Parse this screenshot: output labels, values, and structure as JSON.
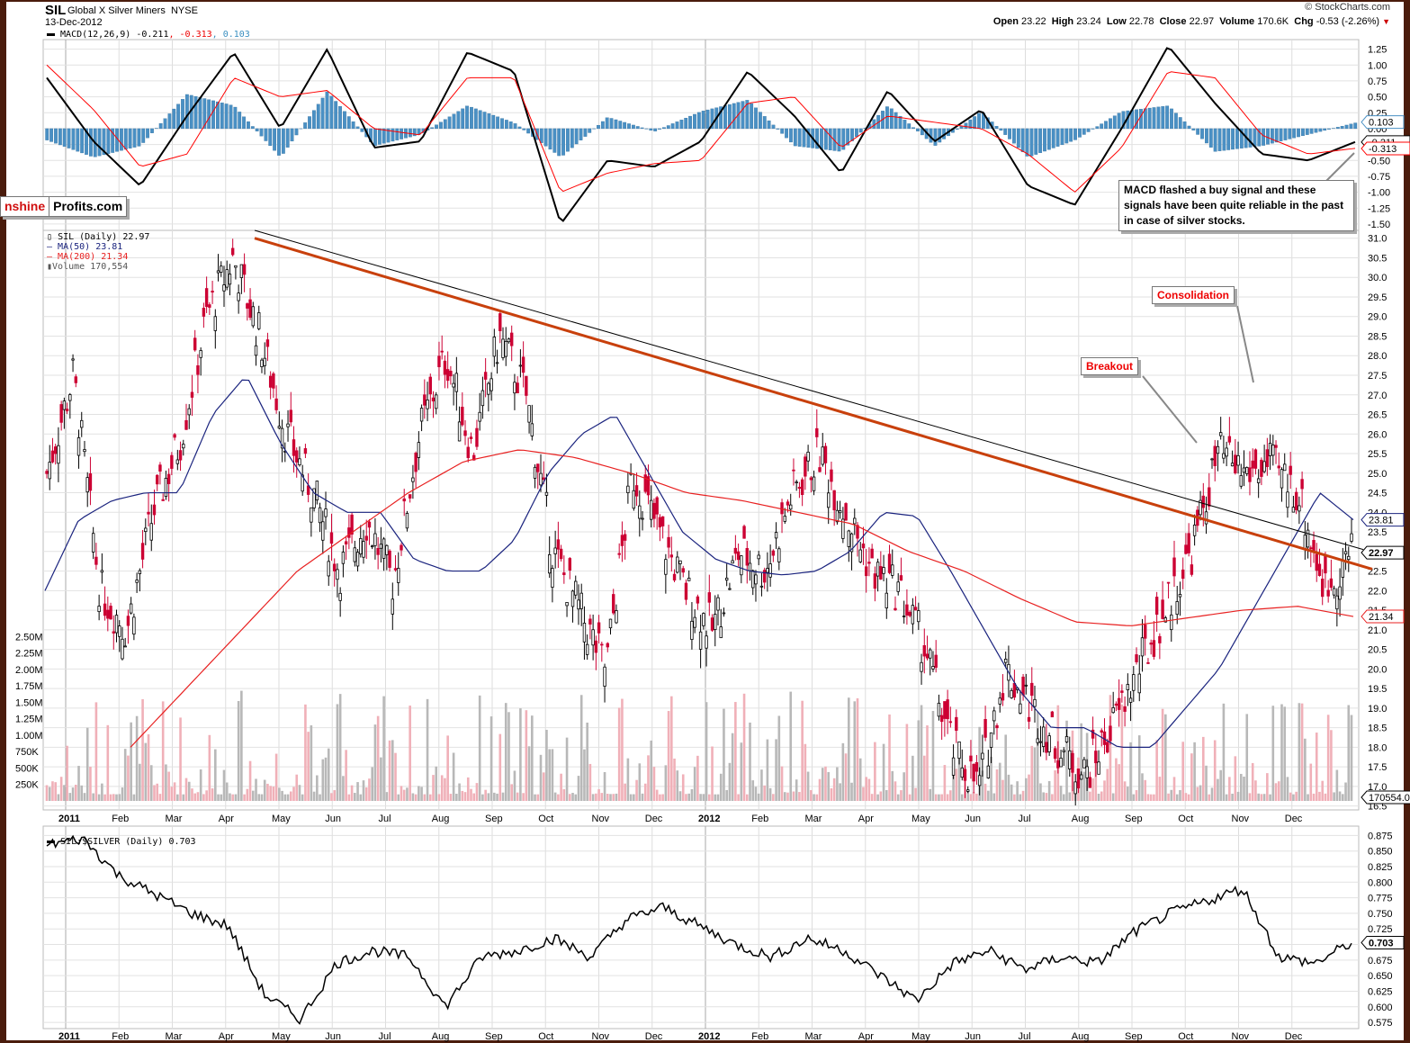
{
  "header": {
    "ticker": "SIL",
    "name": "Global X Silver Miners",
    "exchange": "NYSE",
    "date": "13-Dec-2012",
    "copyright": "© StockCharts.com",
    "quote": {
      "open_label": "Open",
      "open": "23.22",
      "high_label": "High",
      "high": "23.24",
      "low_label": "Low",
      "low": "22.78",
      "close_label": "Close",
      "close": "22.97",
      "volume_label": "Volume",
      "volume": "170.6K",
      "chg_label": "Chg",
      "chg": "-0.53 (-2.26%)",
      "chg_direction": "down"
    }
  },
  "logo": {
    "part1": "nshine",
    "part2": "Profits.com"
  },
  "colors": {
    "macd_line": "#000000",
    "signal_line": "#ff0000",
    "histogram": "#4a90c4",
    "ma50": "#1a237e",
    "ma200": "#e82020",
    "trendline_orange": "#c8400c",
    "trendline_black": "#000000",
    "candle_down": "#cc0033",
    "candle_up": "#000000",
    "volume_down": "#f0b0b8",
    "volume_up": "#b8b8b8"
  },
  "annotations": {
    "macd_note": "MACD flashed a buy signal and these signals have been quite reliable in the past in case of silver stocks.",
    "consolidation": "Consolidation",
    "breakout": "Breakout"
  },
  "chart_data": [
    {
      "type": "line",
      "title": "MACD(12,26,9)",
      "legend": {
        "label": "MACD(12,26,9)",
        "macd": "-0.211",
        "signal": "-0.313",
        "histogram": "0.103"
      },
      "ylim": [
        -1.6,
        1.4
      ],
      "yticks": [
        "1.25",
        "1.00",
        "0.75",
        "0.50",
        "0.25",
        "0.00",
        "-0.25",
        "-0.50",
        "-0.75",
        "-1.00",
        "-1.25",
        "-1.50"
      ],
      "last_values": {
        "macd": "-0.211",
        "signal": "-0.313",
        "histogram": "0.103"
      },
      "x_months": [
        "Jan 2011",
        "Feb",
        "Mar",
        "Apr",
        "May",
        "Jun",
        "Jul",
        "Aug",
        "Sep",
        "Oct",
        "Nov",
        "Dec",
        "Jan 2012",
        "Feb",
        "Mar",
        "Apr",
        "May",
        "Jun",
        "Jul",
        "Aug",
        "Sep",
        "Oct",
        "Nov",
        "Dec"
      ],
      "series": [
        {
          "name": "MACD",
          "monthly_values": [
            0.8,
            -0.2,
            -0.9,
            0.2,
            1.2,
            0.0,
            1.25,
            -0.3,
            -0.2,
            1.2,
            0.9,
            -1.5,
            -0.5,
            -0.6,
            -0.2,
            0.9,
            0.2,
            -0.7,
            0.6,
            -0.2,
            0.3,
            -0.9,
            -1.2,
            0.0,
            1.3,
            0.4,
            -0.4,
            -0.5,
            -0.21
          ]
        },
        {
          "name": "Signal",
          "monthly_values": [
            1.0,
            0.3,
            -0.6,
            -0.4,
            0.8,
            0.5,
            0.6,
            0.0,
            -0.1,
            0.8,
            0.8,
            -1.0,
            -0.7,
            -0.55,
            -0.5,
            0.4,
            0.5,
            -0.3,
            0.2,
            0.1,
            0.0,
            -0.4,
            -1.0,
            -0.3,
            0.9,
            0.8,
            -0.1,
            -0.4,
            -0.31
          ]
        }
      ]
    },
    {
      "type": "candlestick",
      "title": "SIL (Daily)",
      "legend": [
        {
          "label": "SIL (Daily)",
          "value": "22.97"
        },
        {
          "label": "MA(50)",
          "value": "23.81"
        },
        {
          "label": "MA(200)",
          "value": "21.34"
        },
        {
          "label": "Volume",
          "value": "170,554"
        }
      ],
      "ylim": [
        16.4,
        31.2
      ],
      "yticks": [
        "31.0",
        "30.5",
        "30.0",
        "29.5",
        "29.0",
        "28.5",
        "28.0",
        "27.5",
        "27.0",
        "26.5",
        "26.0",
        "25.5",
        "25.0",
        "24.5",
        "24.0",
        "23.5",
        "23.0",
        "22.5",
        "22.0",
        "21.5",
        "21.0",
        "20.5",
        "20.0",
        "19.5",
        "19.0",
        "18.5",
        "18.0",
        "17.5",
        "17.0",
        "16.5"
      ],
      "price_labels": {
        "close": "22.97",
        "ma50": "23.81",
        "ma200": "21.34",
        "volume": "170554.0"
      },
      "volume_axis": {
        "ylim_millions": [
          0,
          2.6
        ],
        "yticks": [
          "2.50M",
          "2.25M",
          "2.00M",
          "1.75M",
          "1.50M",
          "1.25M",
          "1.00M",
          "750K",
          "500K",
          "250K"
        ]
      },
      "x_labels": [
        "2011",
        "Feb",
        "Mar",
        "Apr",
        "May",
        "Jun",
        "Jul",
        "Aug",
        "Sep",
        "Oct",
        "Nov",
        "Dec",
        "2012",
        "Feb",
        "Mar",
        "Apr",
        "May",
        "Jun",
        "Jul",
        "Aug",
        "Sep",
        "Oct",
        "Nov",
        "Dec"
      ],
      "close_semimonthly": [
        25.0,
        27.5,
        22.0,
        21.0,
        24.0,
        25.8,
        29.0,
        30.5,
        28.5,
        26.0,
        24.5,
        22.5,
        23.8,
        22.2,
        26.0,
        28.0,
        25.5,
        28.5,
        27.0,
        23.0,
        21.5,
        20.0,
        25.0,
        23.5,
        22.0,
        21.0,
        23.0,
        22.5,
        24.5,
        25.5,
        24.0,
        22.5,
        22.0,
        20.5,
        18.0,
        17.0,
        20.0,
        19.0,
        18.0,
        17.3,
        18.5,
        20.0,
        21.5,
        23.0,
        25.5,
        25.0,
        25.2,
        24.5,
        22.0,
        22.97
      ],
      "ma50_semimonthly": [
        22.0,
        23.8,
        24.3,
        24.5,
        24.5,
        26.5,
        27.5,
        25.8,
        24.5,
        24.0,
        24.0,
        22.8,
        22.5,
        22.5,
        23.3,
        25.0,
        26.0,
        26.5,
        25.0,
        23.5,
        22.8,
        22.5,
        22.4,
        22.5,
        23.0,
        24.0,
        23.9,
        22.5,
        21.0,
        19.5,
        18.5,
        18.5,
        18.0,
        18.0,
        19.0,
        20.0,
        21.5,
        23.0,
        24.5,
        23.81
      ],
      "ma200_semimonthly": [
        18.0,
        19.5,
        21.0,
        22.5,
        23.5,
        24.5,
        25.3,
        25.6,
        25.4,
        25.0,
        24.5,
        24.3,
        24.0,
        23.7,
        23.0,
        22.5,
        21.8,
        21.2,
        21.1,
        21.3,
        21.5,
        21.6,
        21.34
      ],
      "trendlines": [
        {
          "name": "orange-resistance",
          "from": {
            "date": "Apr 2011",
            "price": 31.0
          },
          "to": {
            "date": "Dec 2012",
            "price": 22.6
          }
        },
        {
          "name": "black-resistance",
          "from": {
            "date": "Apr 2011",
            "price": 31.2
          },
          "to": {
            "date": "Dec 2012",
            "price": 23.0
          }
        }
      ]
    },
    {
      "type": "line",
      "title": "SIL:$SILVER (Daily)",
      "legend": {
        "label": "SIL:$SILVER (Daily)",
        "value": "0.703"
      },
      "ylim": [
        0.565,
        0.89
      ],
      "yticks": [
        "0.875",
        "0.850",
        "0.825",
        "0.800",
        "0.775",
        "0.750",
        "0.725",
        "0.703",
        "0.675",
        "0.650",
        "0.625",
        "0.600",
        "0.575"
      ],
      "last_value": "0.703",
      "values_semimonthly": [
        0.86,
        0.87,
        0.81,
        0.78,
        0.75,
        0.73,
        0.62,
        0.58,
        0.67,
        0.69,
        0.68,
        0.6,
        0.68,
        0.69,
        0.71,
        0.68,
        0.74,
        0.76,
        0.73,
        0.7,
        0.68,
        0.71,
        0.69,
        0.65,
        0.61,
        0.67,
        0.69,
        0.66,
        0.68,
        0.67,
        0.72,
        0.75,
        0.77,
        0.79,
        0.68,
        0.67,
        0.703
      ]
    }
  ]
}
